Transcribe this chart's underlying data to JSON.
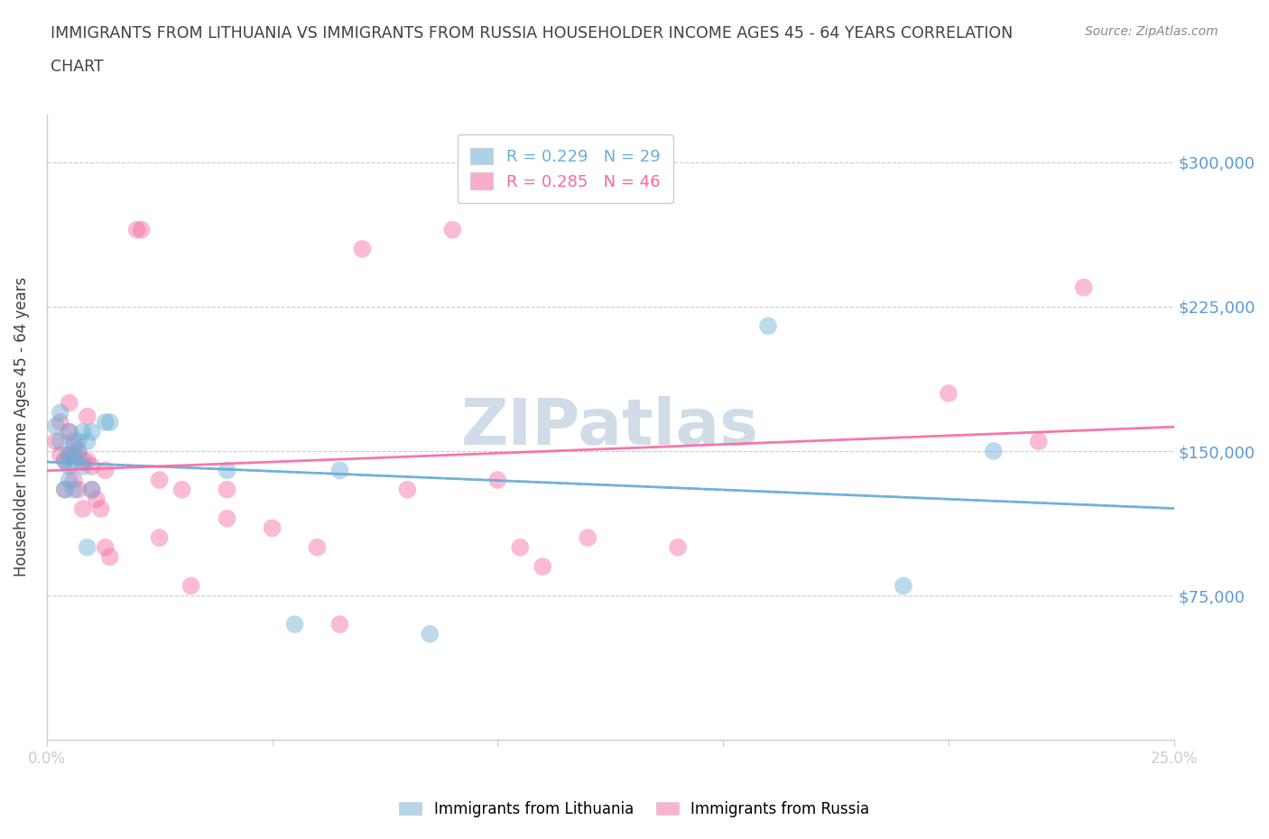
{
  "title_line1": "IMMIGRANTS FROM LITHUANIA VS IMMIGRANTS FROM RUSSIA HOUSEHOLDER INCOME AGES 45 - 64 YEARS CORRELATION",
  "title_line2": "CHART",
  "source_text": "Source: ZipAtlas.com",
  "ylabel": "Householder Income Ages 45 - 64 years",
  "xlim": [
    0.0,
    0.25
  ],
  "ylim": [
    0,
    325000
  ],
  "yticks": [
    75000,
    150000,
    225000,
    300000
  ],
  "ytick_labels": [
    "$75,000",
    "$150,000",
    "$225,000",
    "$300,000"
  ],
  "xticks": [
    0.0,
    0.05,
    0.1,
    0.15,
    0.2,
    0.25
  ],
  "lithuania_color": "#6baed6",
  "russia_color": "#f768a1",
  "legend_r_lithuania": "R = 0.229",
  "legend_n_lithuania": "N = 29",
  "legend_r_russia": "R = 0.285",
  "legend_n_russia": "N = 46",
  "lithuania_x": [
    0.002,
    0.003,
    0.003,
    0.004,
    0.004,
    0.005,
    0.005,
    0.005,
    0.005,
    0.006,
    0.006,
    0.006,
    0.007,
    0.007,
    0.008,
    0.008,
    0.009,
    0.009,
    0.01,
    0.01,
    0.013,
    0.014,
    0.04,
    0.055,
    0.065,
    0.085,
    0.16,
    0.19,
    0.21
  ],
  "lithuania_y": [
    163000,
    170000,
    155000,
    145000,
    130000,
    160000,
    148000,
    142000,
    135000,
    152000,
    145000,
    130000,
    155000,
    148000,
    160000,
    142000,
    155000,
    100000,
    160000,
    130000,
    165000,
    165000,
    140000,
    60000,
    140000,
    55000,
    215000,
    80000,
    150000
  ],
  "russia_x": [
    0.002,
    0.003,
    0.003,
    0.004,
    0.004,
    0.005,
    0.005,
    0.005,
    0.006,
    0.006,
    0.006,
    0.007,
    0.007,
    0.008,
    0.008,
    0.009,
    0.009,
    0.01,
    0.01,
    0.011,
    0.012,
    0.013,
    0.013,
    0.014,
    0.02,
    0.021,
    0.025,
    0.025,
    0.03,
    0.032,
    0.04,
    0.04,
    0.05,
    0.06,
    0.065,
    0.07,
    0.08,
    0.09,
    0.1,
    0.105,
    0.11,
    0.12,
    0.14,
    0.2,
    0.22,
    0.23
  ],
  "russia_y": [
    155000,
    165000,
    148000,
    145000,
    130000,
    175000,
    160000,
    148000,
    148000,
    135000,
    155000,
    150000,
    130000,
    145000,
    120000,
    168000,
    145000,
    142000,
    130000,
    125000,
    120000,
    140000,
    100000,
    95000,
    265000,
    265000,
    135000,
    105000,
    130000,
    80000,
    130000,
    115000,
    110000,
    100000,
    60000,
    255000,
    130000,
    265000,
    135000,
    100000,
    90000,
    105000,
    100000,
    180000,
    155000,
    235000
  ],
  "background_color": "#ffffff",
  "grid_color": "#cccccc",
  "axis_color": "#cccccc",
  "title_color": "#404040",
  "ylabel_color": "#404040",
  "ytick_color": "#5b9bd5",
  "xtick_color": "#404040",
  "source_color": "#888888",
  "watermark_text": "ZIPatlas",
  "watermark_color": "#d0dce8",
  "circle_size": 200,
  "circle_alpha": 0.45,
  "line_alpha": 0.9,
  "dashed_line_color": "#5b9bd5"
}
